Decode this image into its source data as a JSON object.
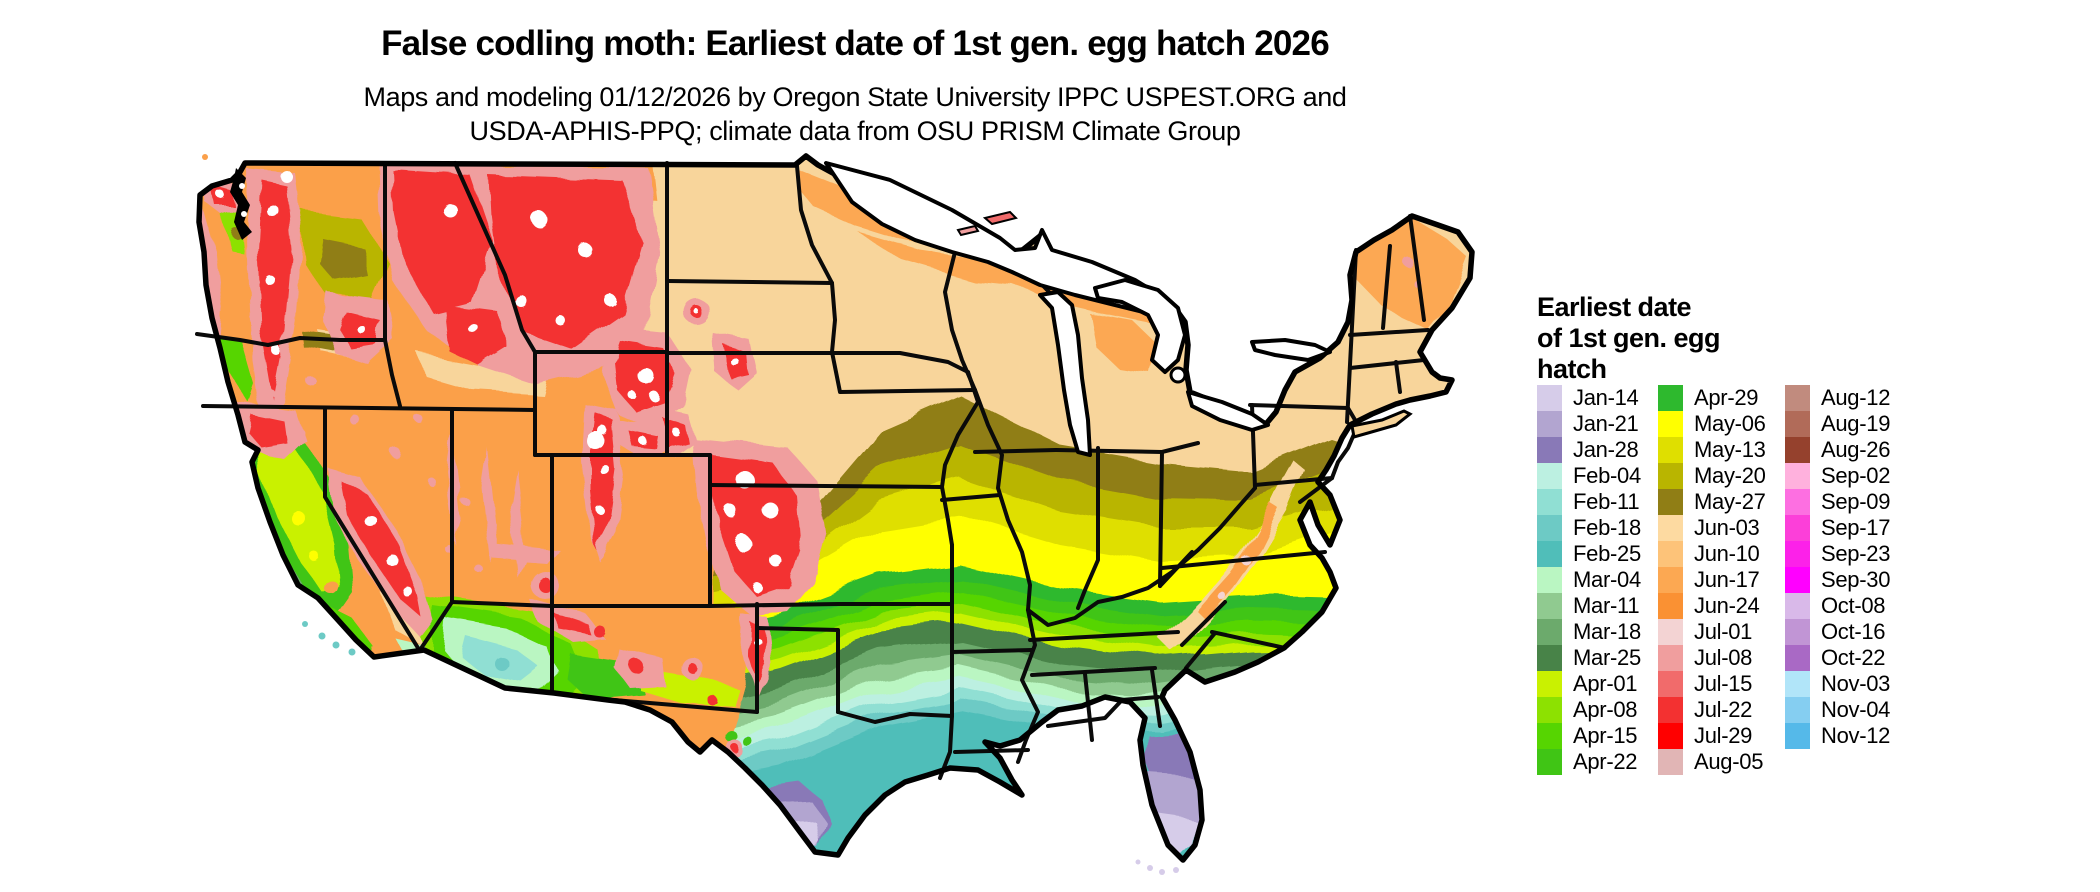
{
  "header": {
    "title": "False codling moth: Earliest date of 1st gen. egg hatch 2026",
    "subtitle_line1": "Maps and modeling 01/12/2026 by Oregon State University IPPC USPEST.ORG and",
    "subtitle_line2": "USDA-APHIS-PPQ; climate data from OSU PRISM Climate Group"
  },
  "legend": {
    "title_line1": "Earliest date",
    "title_line2": "of 1st gen. egg",
    "title_line3": "hatch",
    "columns": [
      [
        {
          "label": "Jan-14",
          "color": "#D6CCE9"
        },
        {
          "label": "Jan-21",
          "color": "#B2A5D0"
        },
        {
          "label": "Jan-28",
          "color": "#8979B7"
        },
        {
          "label": "Feb-04",
          "color": "#BCF0E1"
        },
        {
          "label": "Feb-11",
          "color": "#90DFD3"
        },
        {
          "label": "Feb-18",
          "color": "#6DCAC5"
        },
        {
          "label": "Feb-25",
          "color": "#50BEB9"
        },
        {
          "label": "Mar-04",
          "color": "#BAF6C2"
        },
        {
          "label": "Mar-11",
          "color": "#90CA90"
        },
        {
          "label": "Mar-18",
          "color": "#6CAA6C"
        },
        {
          "label": "Mar-25",
          "color": "#488348"
        },
        {
          "label": "Apr-01",
          "color": "#C9F101"
        },
        {
          "label": "Apr-08",
          "color": "#8DE101"
        },
        {
          "label": "Apr-15",
          "color": "#56D501"
        },
        {
          "label": "Apr-22",
          "color": "#40C515"
        }
      ],
      [
        {
          "label": "Apr-29",
          "color": "#2EB92E"
        },
        {
          "label": "May-06",
          "color": "#FFFF00"
        },
        {
          "label": "May-13",
          "color": "#DFDF00"
        },
        {
          "label": "May-20",
          "color": "#B9B500"
        },
        {
          "label": "May-27",
          "color": "#907E15"
        },
        {
          "label": "Jun-03",
          "color": "#FDDAA1"
        },
        {
          "label": "Jun-10",
          "color": "#FDC379"
        },
        {
          "label": "Jun-17",
          "color": "#FCA852"
        },
        {
          "label": "Jun-24",
          "color": "#FA9133"
        },
        {
          "label": "Jul-01",
          "color": "#F3D3D3"
        },
        {
          "label": "Jul-08",
          "color": "#F09E9E"
        },
        {
          "label": "Jul-15",
          "color": "#F16B6B"
        },
        {
          "label": "Jul-22",
          "color": "#F33131"
        },
        {
          "label": "Jul-29",
          "color": "#FF0000"
        },
        {
          "label": "Aug-05",
          "color": "#E1B5B5"
        }
      ],
      [
        {
          "label": "Aug-12",
          "color": "#C18B7E"
        },
        {
          "label": "Aug-19",
          "color": "#B16B59"
        },
        {
          "label": "Aug-26",
          "color": "#95412D"
        },
        {
          "label": "Sep-02",
          "color": "#FFB1DD"
        },
        {
          "label": "Sep-09",
          "color": "#FD6FE1"
        },
        {
          "label": "Sep-17",
          "color": "#FC3FD9"
        },
        {
          "label": "Sep-23",
          "color": "#FC21E9"
        },
        {
          "label": "Sep-30",
          "color": "#FF00FF"
        },
        {
          "label": "Oct-08",
          "color": "#D9B9E9"
        },
        {
          "label": "Oct-16",
          "color": "#C195D5"
        },
        {
          "label": "Oct-22",
          "color": "#A969C5"
        },
        {
          "label": "Nov-03",
          "color": "#B1E5F9"
        },
        {
          "label": "Nov-04",
          "color": "#85CEF1"
        },
        {
          "label": "Nov-12",
          "color": "#55B9E9"
        }
      ]
    ]
  }
}
